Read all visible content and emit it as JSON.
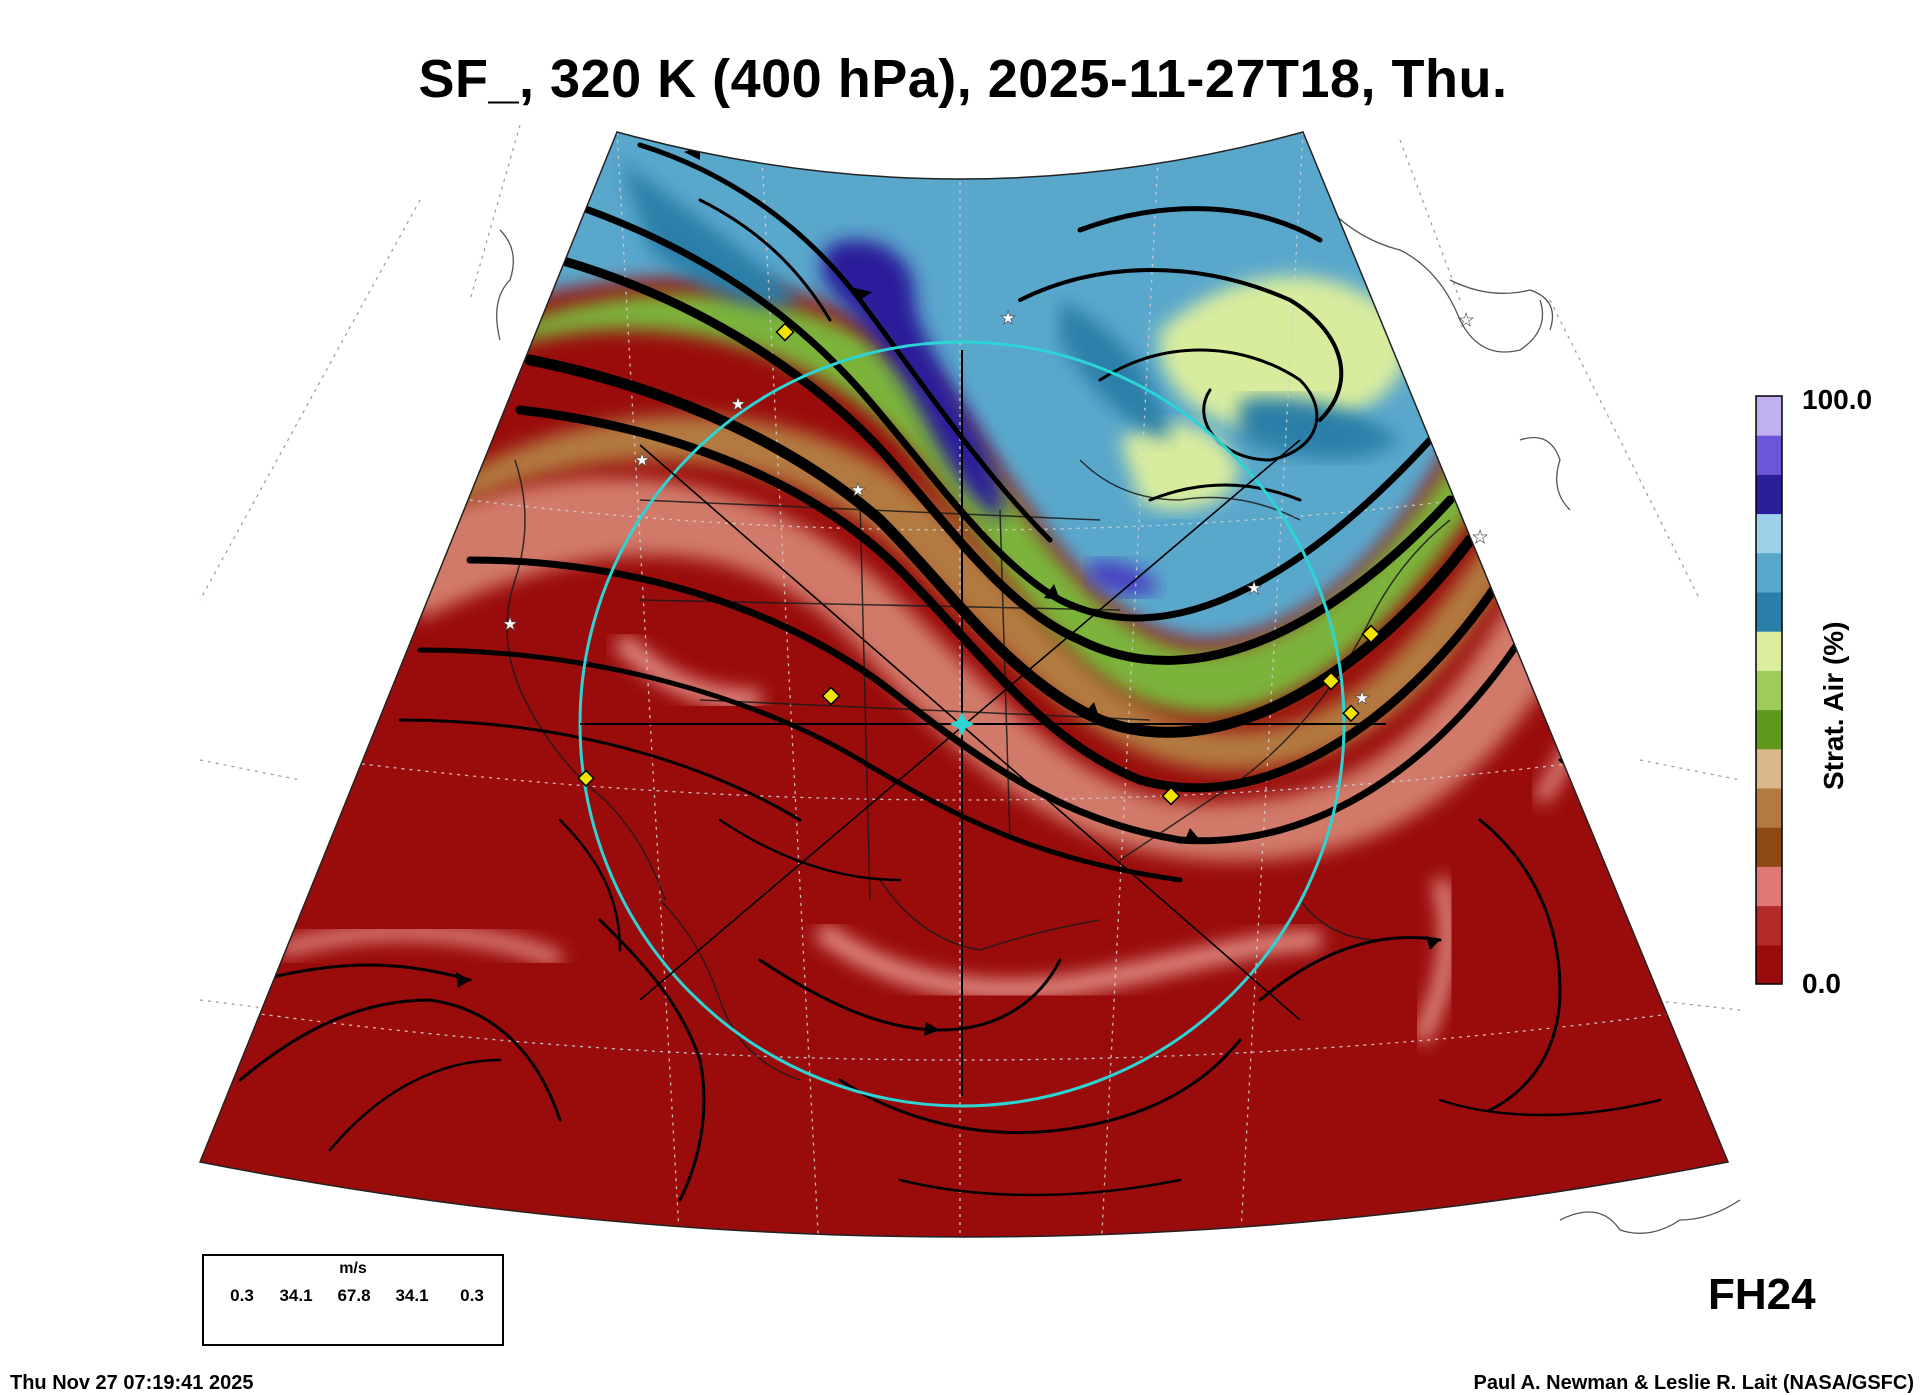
{
  "title": "SF_, 320 K (400 hPa), 2025-11-27T18, Thu.",
  "colorbar": {
    "title": "Strat. Air (%)",
    "max_label": "100.0",
    "min_label": "0.0",
    "colors_bottom_to_top": [
      "#9a0c0c",
      "#b42a2a",
      "#e07878",
      "#8e4a12",
      "#b27a40",
      "#dcb78c",
      "#5f9a1e",
      "#9ecc5a",
      "#dceda0",
      "#2a7fa8",
      "#5aa7cc",
      "#9dd0ea",
      "#2a1e9a",
      "#6a56d6",
      "#c0b0f0"
    ]
  },
  "field_colors": {
    "troposphere": "#9a0c0c",
    "stratosphere": "#5aa7cc",
    "stratosphere_core": "#2a1e9a",
    "transition_green": "#8ac34a",
    "transition_brown": "#b27a40",
    "gridlines": "#777777",
    "range_ring": "#2cd4d4",
    "markers": "#f4e300"
  },
  "forecast_hour": "FH24",
  "wind_legend": {
    "unit": "m/s",
    "values": [
      "0.3",
      "34.1",
      "67.8",
      "34.1",
      "0.3"
    ]
  },
  "footer": {
    "timestamp": "Thu Nov 27 07:19:41 2025",
    "credit": "Paul A. Newman & Leslie R. Lait (NASA/GSFC)"
  }
}
